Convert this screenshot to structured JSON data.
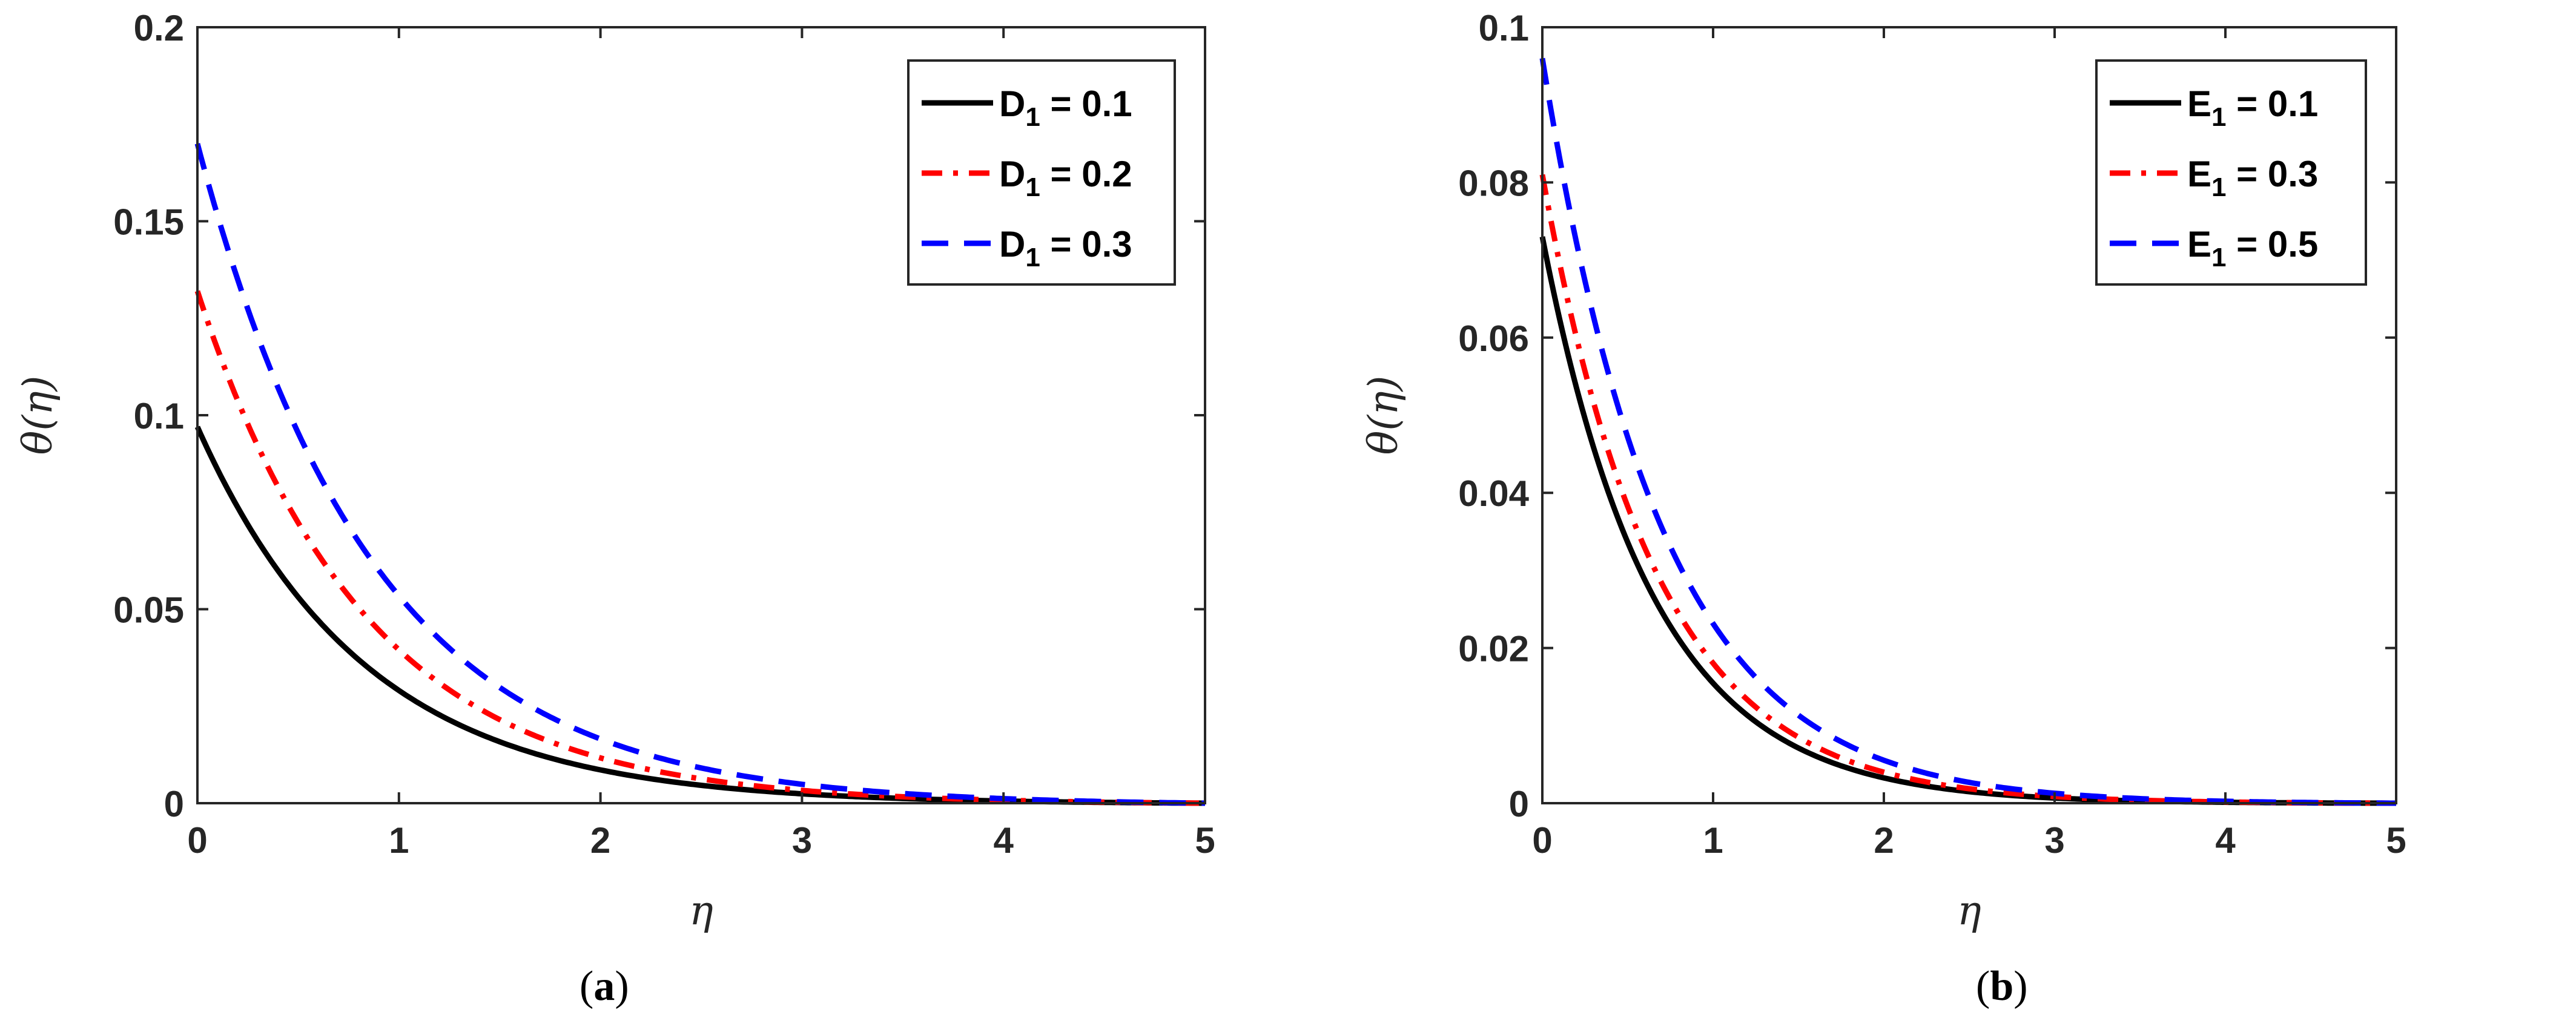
{
  "chart_data": [
    {
      "type": "line",
      "panel_label": "a",
      "xlabel": "η",
      "ylabel": "θ(η)",
      "xlim": [
        0,
        5
      ],
      "ylim": [
        0,
        0.2
      ],
      "xticks": [
        0,
        1,
        2,
        3,
        4,
        5
      ],
      "xtick_labels": [
        "0",
        "1",
        "2",
        "3",
        "4",
        "5"
      ],
      "yticks": [
        0,
        0.05,
        0.1,
        0.15,
        0.2
      ],
      "ytick_labels": [
        "0",
        "0.05",
        "0.1",
        "0.15",
        "0.2"
      ],
      "legend_position": "top-right",
      "series": [
        {
          "name": "D",
          "subscript": "1",
          "value_text": " = 0.1",
          "color": "#000000",
          "style": "solid",
          "theta0": 0.097,
          "decay": 1.2
        },
        {
          "name": "D",
          "subscript": "1",
          "value_text": " = 0.2",
          "color": "#ff0000",
          "style": "dashdot",
          "theta0": 0.132,
          "decay": 1.2
        },
        {
          "name": "D",
          "subscript": "1",
          "value_text": " = 0.3",
          "color": "#0000ff",
          "style": "dashed",
          "theta0": 0.17,
          "decay": 1.15
        }
      ]
    },
    {
      "type": "line",
      "panel_label": "b",
      "xlabel": "η",
      "ylabel": "θ(η)",
      "xlim": [
        0,
        5
      ],
      "ylim": [
        0,
        0.1
      ],
      "xticks": [
        0,
        1,
        2,
        3,
        4,
        5
      ],
      "xtick_labels": [
        "0",
        "1",
        "2",
        "3",
        "4",
        "5"
      ],
      "yticks": [
        0,
        0.02,
        0.04,
        0.06,
        0.08,
        0.1
      ],
      "ytick_labels": [
        "0",
        "0.02",
        "0.04",
        "0.06",
        "0.08",
        "0.1"
      ],
      "legend_position": "top-right",
      "series": [
        {
          "name": "E",
          "subscript": "1",
          "value_text": " = 0.1",
          "color": "#000000",
          "style": "solid",
          "theta0": 0.073,
          "decay": 1.55
        },
        {
          "name": "E",
          "subscript": "1",
          "value_text": " = 0.3",
          "color": "#ff0000",
          "style": "dashdot",
          "theta0": 0.081,
          "decay": 1.5
        },
        {
          "name": "E",
          "subscript": "1",
          "value_text": " = 0.5",
          "color": "#0000ff",
          "style": "dashed",
          "theta0": 0.096,
          "decay": 1.42
        }
      ]
    }
  ]
}
